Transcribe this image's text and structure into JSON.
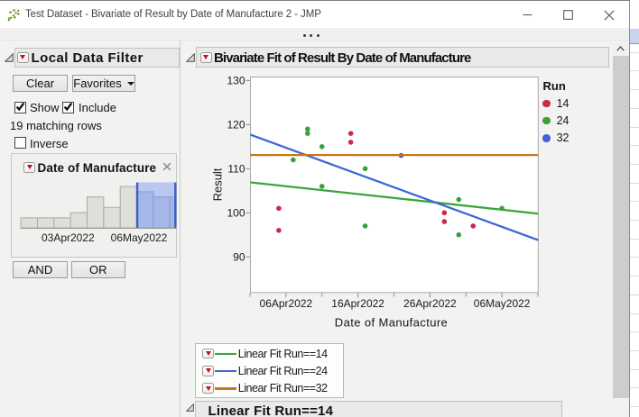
{
  "window": {
    "title": "Test Dataset - Bivariate of Result by Date of Manufacture 2 - JMP"
  },
  "filter_panel": {
    "title": "Local Data Filter",
    "clear_label": "Clear",
    "favorites_label": "Favorites",
    "show_label": "Show",
    "include_label": "Include",
    "inverse_label": "Inverse",
    "show_checked": true,
    "include_checked": true,
    "inverse_checked": false,
    "matching_rows": "19 matching rows",
    "and_label": "AND",
    "or_label": "OR",
    "column_filter": {
      "title": "Date of Manufacture",
      "histogram": {
        "bin_counts": [
          2,
          2,
          2,
          3,
          6,
          4,
          8,
          7,
          6,
          6
        ],
        "selected_from_bin": 7,
        "bar_color": "#dde0d8",
        "bar_border": "#a7aba3",
        "selected_bar_color": "#a5b7e6",
        "selected_bar_border": "#8b9dce",
        "selection_fill": "#b9c8f0",
        "selection_edge": "#3c5fc6",
        "axis_labels": [
          {
            "label": "03Apr2022",
            "x_frac": 0.305
          },
          {
            "label": "06May2022",
            "x_frac": 0.76
          }
        ]
      }
    }
  },
  "report": {
    "section_title": "Bivariate Fit of Result By Date of Manufacture",
    "subsection_title": "Linear Fit Run==14"
  },
  "chart_data": {
    "type": "scatter",
    "title": "Bivariate Fit of Result By Date of Manufacture",
    "xlabel": "Date of Manufacture",
    "ylabel": "Result",
    "legend_title": "Run",
    "y_ticks": [
      90,
      100,
      110,
      120,
      130
    ],
    "ylim": [
      81.8,
      130.9
    ],
    "x_ref_date": "06Apr2022",
    "x_range_days": [
      -5,
      35.1
    ],
    "x_major_ticks": [
      "06Apr2022",
      "16Apr2022",
      "26Apr2022",
      "06May2022"
    ],
    "x_minor_tick_days": [
      -5,
      5,
      15,
      25,
      35
    ],
    "grid": false,
    "legend_position": "right",
    "series": [
      {
        "name": "14",
        "color": "#c92a4b",
        "points": [
          {
            "date": "05Apr2022",
            "result": 101
          },
          {
            "date": "05Apr2022",
            "result": 96
          },
          {
            "date": "15Apr2022",
            "result": 118
          },
          {
            "date": "15Apr2022",
            "result": 116
          },
          {
            "date": "28Apr2022",
            "result": 100
          },
          {
            "date": "28Apr2022",
            "result": 98
          },
          {
            "date": "02May2022",
            "result": 97
          }
        ]
      },
      {
        "name": "24",
        "color": "#37a23a",
        "points": [
          {
            "date": "07Apr2022",
            "result": 112
          },
          {
            "date": "09Apr2022",
            "result": 119
          },
          {
            "date": "09Apr2022",
            "result": 118
          },
          {
            "date": "11Apr2022",
            "result": 115
          },
          {
            "date": "11Apr2022",
            "result": 106
          },
          {
            "date": "17Apr2022",
            "result": 110
          },
          {
            "date": "17Apr2022",
            "result": 97
          },
          {
            "date": "30Apr2022",
            "result": 103
          },
          {
            "date": "30Apr2022",
            "result": 95
          },
          {
            "date": "06May2022",
            "result": 101
          }
        ]
      },
      {
        "name": "32",
        "color": "#3f63d8",
        "points": [
          {
            "date": "22Apr2022",
            "result": 113
          }
        ]
      }
    ],
    "fit_lines": [
      {
        "label": "Linear Fit Run==14",
        "color": "#3aa63c",
        "y_at_xmin": 106.9,
        "y_at_xmax": 99.8
      },
      {
        "label": "Linear Fit Run==24",
        "color": "#3c66d8",
        "y_at_xmin": 117.7,
        "y_at_xmax": 93.8
      },
      {
        "label": "Linear Fit Run==32",
        "color": "#c4771f",
        "y_at_xmin": 113.1,
        "y_at_xmax": 113.1
      }
    ]
  }
}
